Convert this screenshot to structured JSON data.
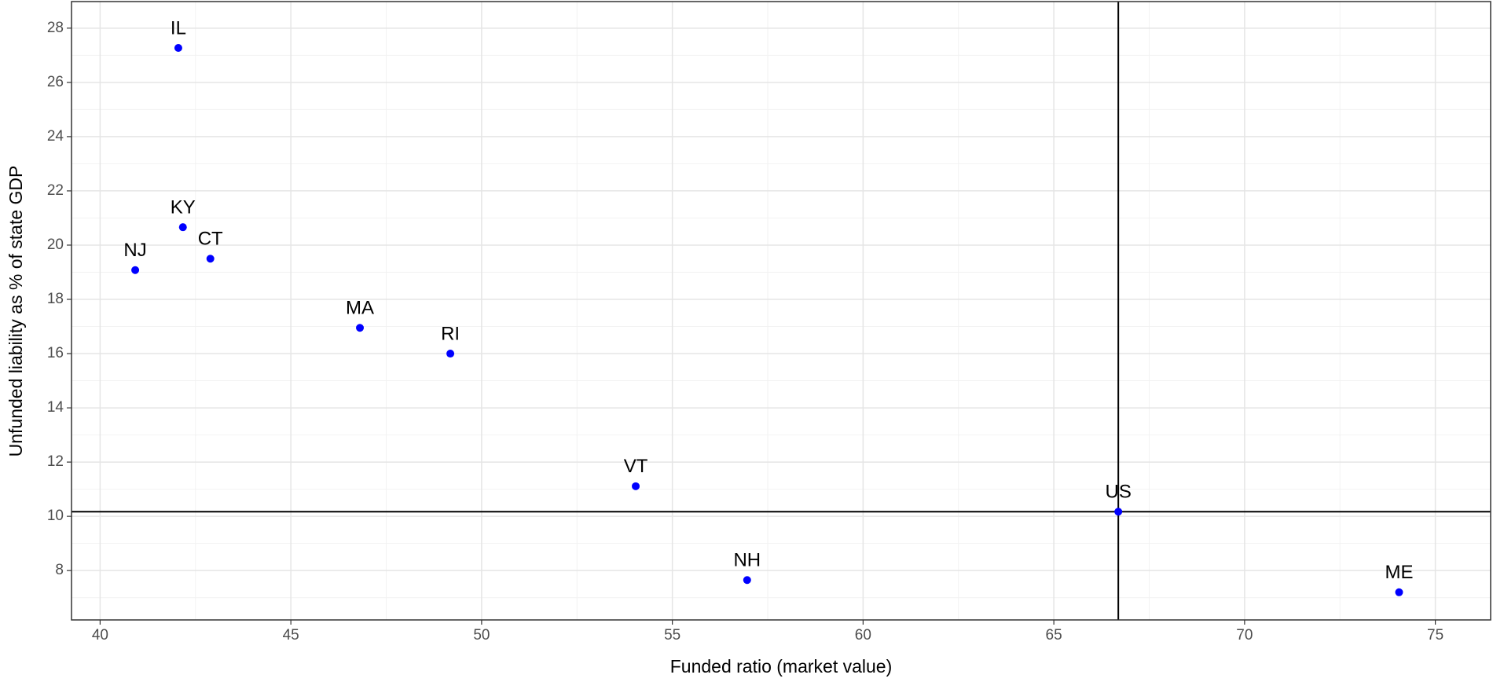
{
  "chart_data": {
    "type": "scatter",
    "xlabel": "Funded ratio (market value)",
    "ylabel": "Unfunded liability as % of state GDP",
    "labels": [
      "IL",
      "KY",
      "CT",
      "NJ",
      "MA",
      "RI",
      "VT",
      "US",
      "NH",
      "ME"
    ],
    "x": [
      42.05,
      42.17,
      42.89,
      40.92,
      46.81,
      49.18,
      54.04,
      66.69,
      56.96,
      74.05
    ],
    "values": [
      27.27,
      20.66,
      19.5,
      19.08,
      16.95,
      16.0,
      11.11,
      10.17,
      7.65,
      7.2
    ],
    "color": "#0000ff",
    "xlim": [
      39.25,
      76.45
    ],
    "ylim": [
      6.18,
      28.98
    ],
    "xticks": [
      40,
      45,
      50,
      55,
      60,
      65,
      70,
      75
    ],
    "yticks": [
      8,
      10,
      12,
      14,
      16,
      18,
      20,
      22,
      24,
      26,
      28
    ],
    "reference_lines": {
      "x": 66.69,
      "y": 10.17
    },
    "grid": true,
    "minor_grid": true
  }
}
